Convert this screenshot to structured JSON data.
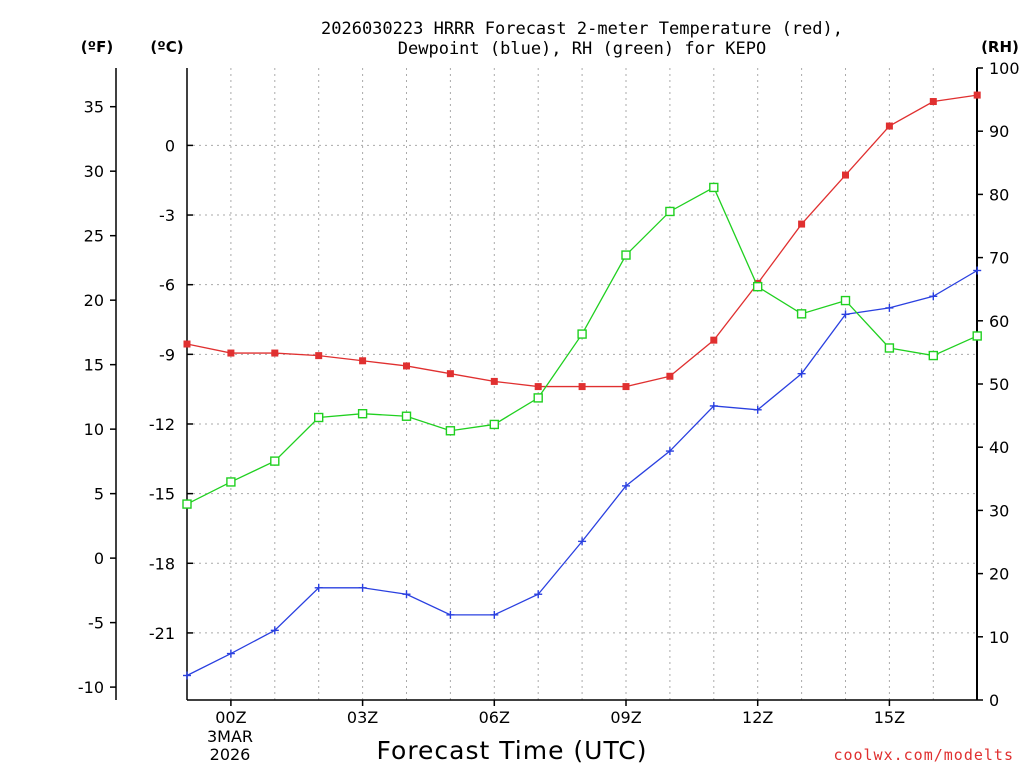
{
  "chart_data": {
    "type": "line",
    "title_lines": [
      "2026030223 HRRR Forecast 2-meter Temperature (red),",
      "Dewpoint (blue), RH (green) for KEPO"
    ],
    "xlabel": "Forecast Time (UTC)",
    "date_labels": [
      "3MAR",
      "2026"
    ],
    "credit": "coolwx.com/modelts",
    "units": {
      "f": "(ºF)",
      "c": "(ºC)",
      "rh": "(RH)"
    },
    "x": [
      "23Z",
      "00Z",
      "01Z",
      "02Z",
      "03Z",
      "04Z",
      "05Z",
      "06Z",
      "07Z",
      "08Z",
      "09Z",
      "10Z",
      "11Z",
      "12Z",
      "13Z",
      "14Z",
      "15Z",
      "16Z",
      "17Z"
    ],
    "x_ticks": [
      "00Z",
      "03Z",
      "06Z",
      "09Z",
      "12Z",
      "15Z"
    ],
    "y_left_f": {
      "range": [
        -11,
        38
      ],
      "ticks": [
        "-10",
        "-5",
        "0",
        "5",
        "10",
        "15",
        "20",
        "25",
        "30",
        "35"
      ]
    },
    "y_left_c": {
      "ticks": [
        "-21",
        "-18",
        "-15",
        "-12",
        "-9",
        "-6",
        "-3",
        "0"
      ]
    },
    "y_right_rh": {
      "range": [
        0,
        100
      ],
      "ticks": [
        "0",
        "10",
        "20",
        "30",
        "40",
        "50",
        "60",
        "70",
        "80",
        "90",
        "100"
      ]
    },
    "series": [
      {
        "name": "Temperature",
        "unit": "F",
        "axis": "left",
        "color": "#e03030",
        "marker": "filled-square",
        "values": [
          16.6,
          15.9,
          15.9,
          15.7,
          15.3,
          14.9,
          14.3,
          13.7,
          13.3,
          13.3,
          13.3,
          14.1,
          16.9,
          21.3,
          25.9,
          29.7,
          33.5,
          35.4,
          35.9
        ]
      },
      {
        "name": "Dewpoint",
        "unit": "F",
        "axis": "left",
        "color": "#2a40e0",
        "marker": "plus",
        "values": [
          -9.1,
          -7.4,
          -5.6,
          -2.3,
          -2.3,
          -2.8,
          -4.4,
          -4.4,
          -2.8,
          1.3,
          5.6,
          8.3,
          11.8,
          11.5,
          14.3,
          18.9,
          19.4,
          20.3,
          22.3
        ]
      },
      {
        "name": "RH",
        "unit": "%",
        "axis": "right",
        "color": "#20d020",
        "marker": "open-square",
        "values": [
          31,
          34.5,
          37.8,
          44.7,
          45.3,
          44.9,
          42.6,
          43.6,
          47.8,
          57.9,
          70.4,
          77.3,
          81.1,
          65.4,
          61.1,
          63.2,
          55.7,
          54.5,
          57.6
        ]
      }
    ],
    "grid": true
  }
}
